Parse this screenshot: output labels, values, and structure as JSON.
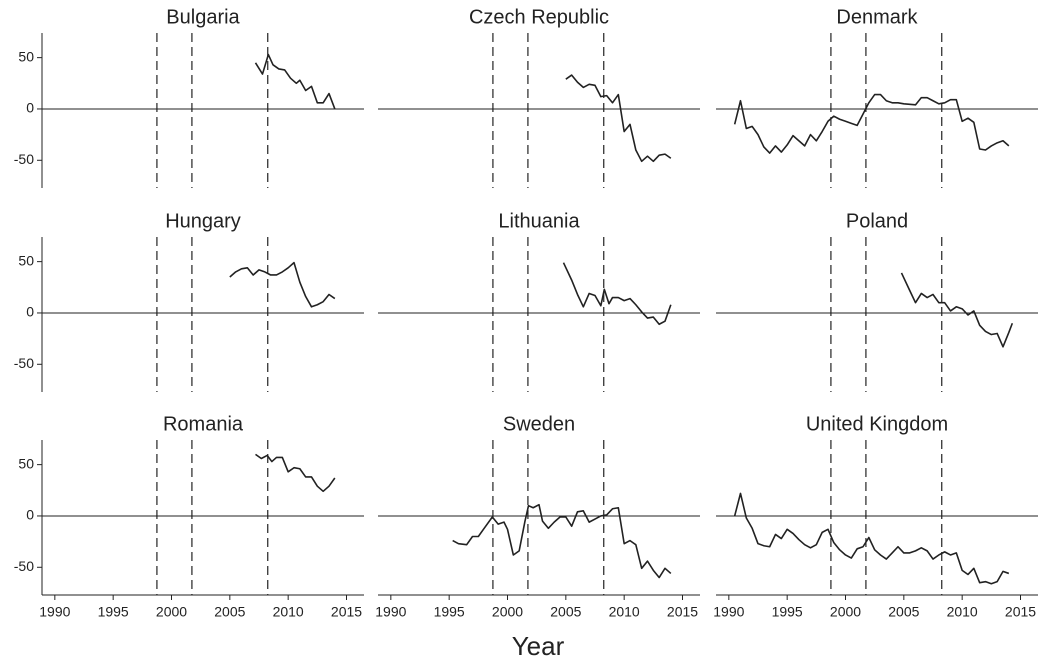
{
  "xlabel": "Year",
  "chart_data": [
    {
      "type": "line",
      "title": "Bulgaria",
      "xlim": [
        1988.9,
        2016.5
      ],
      "ylim": [
        -77,
        74
      ],
      "yticks": [
        -50,
        0,
        50
      ],
      "hline": 0,
      "vlines": [
        1998.75,
        2001.75,
        2008.25
      ],
      "x": [
        2007.2,
        2007.8,
        2008.3,
        2008.7,
        2009.2,
        2009.7,
        2010.2,
        2010.7,
        2011,
        2011.5,
        2012,
        2012.5,
        2013,
        2013.5,
        2014
      ],
      "values": [
        45,
        34,
        53,
        43,
        39,
        38,
        30,
        25,
        28,
        18,
        22,
        6,
        6,
        15,
        0
      ],
      "color": "#222222"
    },
    {
      "type": "line",
      "title": "Czech Republic",
      "xlim": [
        1988.9,
        2016.5
      ],
      "ylim": [
        -77,
        74
      ],
      "hline": 0,
      "vlines": [
        1998.75,
        2001.75,
        2008.25
      ],
      "x": [
        2005,
        2005.5,
        2006,
        2006.5,
        2007,
        2007.5,
        2008,
        2008.5,
        2009,
        2009.5,
        2010,
        2010.5,
        2011,
        2011.5,
        2012,
        2012.5,
        2013,
        2013.5,
        2014
      ],
      "values": [
        29,
        33,
        26,
        21,
        24,
        23,
        12,
        13,
        6,
        14,
        -22,
        -15,
        -40,
        -51,
        -46,
        -51,
        -45,
        -44,
        -48
      ],
      "color": "#222222"
    },
    {
      "type": "line",
      "title": "Denmark",
      "xlim": [
        1988.9,
        2016.5
      ],
      "ylim": [
        -77,
        74
      ],
      "hline": 0,
      "vlines": [
        1998.75,
        2001.75,
        2008.25
      ],
      "x": [
        1990.5,
        1991,
        1991.5,
        1992,
        1992.5,
        1993,
        1993.5,
        1994,
        1994.5,
        1995,
        1995.5,
        1996,
        1996.5,
        1997,
        1997.5,
        1998,
        1998.5,
        1999,
        1999.5,
        2000,
        2000.5,
        2001,
        2001.5,
        2002,
        2002.5,
        2003,
        2003.5,
        2004,
        2004.5,
        2005,
        2006,
        2006.5,
        2007,
        2007.5,
        2008,
        2008.5,
        2009,
        2009.5,
        2010,
        2010.5,
        2011,
        2011.5,
        2012,
        2012.5,
        2013,
        2013.5,
        2014
      ],
      "values": [
        -15,
        8,
        -19,
        -17,
        -25,
        -37,
        -43,
        -36,
        -42,
        -35,
        -26,
        -31,
        -36,
        -25,
        -31,
        -22,
        -12,
        -7,
        -10,
        -12,
        -14,
        -16,
        -5,
        6,
        14,
        14,
        8,
        6,
        6,
        5,
        4,
        11,
        11,
        8,
        5,
        6,
        9,
        9,
        -12,
        -9,
        -13,
        -39,
        -40,
        -36,
        -33,
        -31,
        -36
      ],
      "color": "#222222"
    },
    {
      "type": "line",
      "title": "Hungary",
      "xlim": [
        1988.9,
        2016.5
      ],
      "ylim": [
        -77,
        74
      ],
      "yticks": [
        -50,
        0,
        50
      ],
      "hline": 0,
      "vlines": [
        1998.75,
        2001.75,
        2008.25
      ],
      "x": [
        2005,
        2005.5,
        2006,
        2006.5,
        2007,
        2007.5,
        2008,
        2008.5,
        2009,
        2009.5,
        2010,
        2010.5,
        2011,
        2011.5,
        2012,
        2012.5,
        2013,
        2013.5,
        2014
      ],
      "values": [
        35,
        40,
        43,
        44,
        37,
        42,
        40,
        37,
        37,
        40,
        44,
        49,
        30,
        16,
        6,
        8,
        11,
        18,
        14
      ],
      "color": "#222222"
    },
    {
      "type": "line",
      "title": "Lithuania",
      "xlim": [
        1988.9,
        2016.5
      ],
      "ylim": [
        -77,
        74
      ],
      "hline": 0,
      "vlines": [
        1998.75,
        2001.75,
        2008.25
      ],
      "x": [
        2004.8,
        2005.5,
        2006,
        2006.5,
        2007,
        2007.5,
        2008,
        2008.3,
        2008.7,
        2009,
        2009.5,
        2010,
        2010.5,
        2011,
        2011.5,
        2012,
        2012.5,
        2013,
        2013.5,
        2014
      ],
      "values": [
        49,
        32,
        18,
        6,
        19,
        17,
        7,
        23,
        9,
        15,
        15,
        12,
        14,
        8,
        1,
        -5,
        -4,
        -11,
        -8,
        8
      ],
      "color": "#222222"
    },
    {
      "type": "line",
      "title": "Poland",
      "xlim": [
        1988.9,
        2016.5
      ],
      "ylim": [
        -77,
        74
      ],
      "hline": 0,
      "vlines": [
        1998.75,
        2001.75,
        2008.25
      ],
      "x": [
        2004.8,
        2005.5,
        2006,
        2006.5,
        2007,
        2007.5,
        2008,
        2008.5,
        2009,
        2009.5,
        2010,
        2010.5,
        2011,
        2011.5,
        2012,
        2012.5,
        2013,
        2013.5,
        2014,
        2014.3
      ],
      "values": [
        39,
        22,
        10,
        19,
        15,
        18,
        10,
        10,
        2,
        6,
        4,
        -2,
        2,
        -12,
        -18,
        -21,
        -20,
        -33,
        -19,
        -10
      ],
      "color": "#222222"
    },
    {
      "type": "line",
      "title": "Romania",
      "xlim": [
        1988.9,
        2016.5
      ],
      "ylim": [
        -77,
        74
      ],
      "yticks": [
        -50,
        0,
        50
      ],
      "xticks": [
        1990,
        1995,
        2000,
        2005,
        2010,
        2015
      ],
      "hline": 0,
      "vlines": [
        1998.75,
        2001.75,
        2008.25
      ],
      "x": [
        2007.2,
        2007.7,
        2008.2,
        2008.6,
        2009,
        2009.5,
        2010,
        2010.5,
        2011,
        2011.5,
        2012,
        2012.5,
        2013,
        2013.5,
        2014
      ],
      "values": [
        60,
        56,
        59,
        53,
        57,
        57,
        43,
        47,
        46,
        38,
        38,
        29,
        24,
        29,
        37
      ],
      "color": "#222222"
    },
    {
      "type": "line",
      "title": "Sweden",
      "xlim": [
        1988.9,
        2016.5
      ],
      "ylim": [
        -77,
        74
      ],
      "xticks": [
        1990,
        1995,
        2000,
        2005,
        2010,
        2015
      ],
      "hline": 0,
      "vlines": [
        1998.75,
        2001.75,
        2008.25
      ],
      "x": [
        1995.3,
        1995.8,
        1996.5,
        1997,
        1997.5,
        1998,
        1998.7,
        1999.2,
        1999.7,
        2000,
        2000.5,
        2001,
        2001.5,
        2001.8,
        2002.2,
        2002.7,
        2003,
        2003.5,
        2004,
        2004.5,
        2005,
        2005.5,
        2006,
        2006.5,
        2007,
        2007.5,
        2008,
        2008.5,
        2009,
        2009.5,
        2010,
        2010.5,
        2011,
        2011.5,
        2012,
        2012.5,
        2013,
        2013.5,
        2014
      ],
      "values": [
        -24,
        -27,
        -28,
        -20,
        -20,
        -12,
        -1,
        -8,
        -6,
        -13,
        -38,
        -34,
        -5,
        10,
        8,
        11,
        -5,
        -12,
        -6,
        -1,
        -1,
        -10,
        4,
        5,
        -6,
        -3,
        0,
        1,
        7,
        8,
        -27,
        -24,
        -28,
        -51,
        -44,
        -53,
        -60,
        -51,
        -56
      ],
      "color": "#222222"
    },
    {
      "type": "line",
      "title": "United Kingdom",
      "xlim": [
        1988.9,
        2016.5
      ],
      "ylim": [
        -77,
        74
      ],
      "xticks": [
        1990,
        1995,
        2000,
        2005,
        2010,
        2015
      ],
      "hline": 0,
      "vlines": [
        1998.75,
        2001.75,
        2008.25
      ],
      "x": [
        1990.5,
        1991,
        1991.5,
        1992,
        1992.5,
        1993,
        1993.5,
        1994,
        1994.5,
        1995,
        1995.5,
        1996,
        1996.5,
        1997,
        1997.5,
        1998,
        1998.5,
        1999,
        1999.5,
        2000,
        2000.5,
        2001,
        2001.5,
        2002,
        2002.5,
        2003,
        2003.5,
        2004,
        2004.5,
        2005,
        2005.5,
        2006,
        2006.5,
        2007,
        2007.5,
        2008,
        2008.5,
        2009,
        2009.5,
        2010,
        2010.5,
        2011,
        2011.5,
        2012,
        2012.5,
        2013,
        2013.5,
        2014
      ],
      "values": [
        0,
        22,
        -2,
        -12,
        -27,
        -29,
        -30,
        -18,
        -22,
        -13,
        -17,
        -23,
        -28,
        -31,
        -28,
        -16,
        -13,
        -26,
        -33,
        -38,
        -41,
        -32,
        -30,
        -21,
        -33,
        -38,
        -42,
        -36,
        -30,
        -36,
        -36,
        -34,
        -31,
        -34,
        -42,
        -38,
        -35,
        -38,
        -36,
        -53,
        -57,
        -51,
        -65,
        -64,
        -66,
        -64,
        -54,
        -56
      ],
      "color": "#222222"
    }
  ]
}
